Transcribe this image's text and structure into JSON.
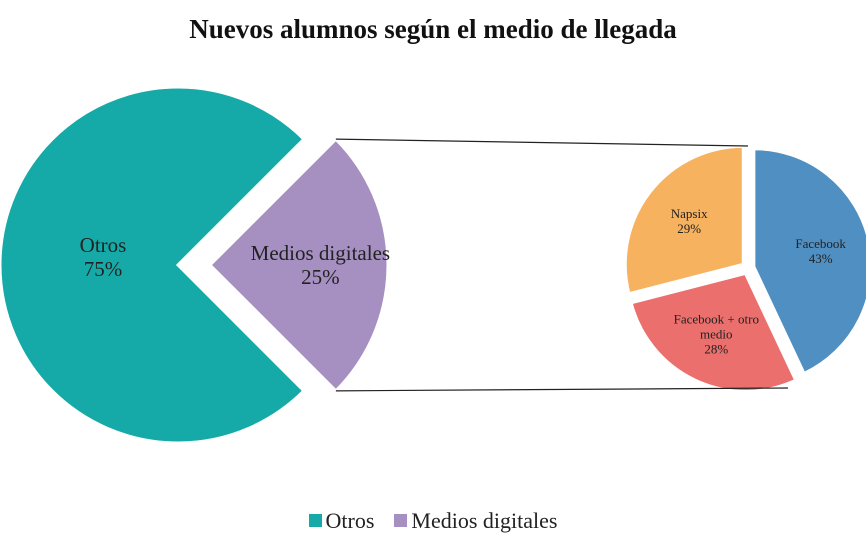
{
  "chart_data": [
    {
      "type": "pie",
      "title": "Nuevos alumnos según el medio de llegada",
      "categories": [
        "Otros",
        "Medios digitales"
      ],
      "values": [
        75,
        25
      ],
      "value_labels": [
        "75%",
        "25%"
      ],
      "colors": [
        "#15aaa7",
        "#a68fc1"
      ],
      "legend": "bottom"
    },
    {
      "type": "pie",
      "categories": [
        "Facebook",
        "Facebook + otro medio",
        "Napsix"
      ],
      "values": [
        43,
        28,
        29
      ],
      "value_labels": [
        "43%",
        "28%",
        "29%"
      ],
      "colors": [
        "#4f8fc2",
        "#ea6f6d",
        "#f6b25f"
      ]
    }
  ]
}
